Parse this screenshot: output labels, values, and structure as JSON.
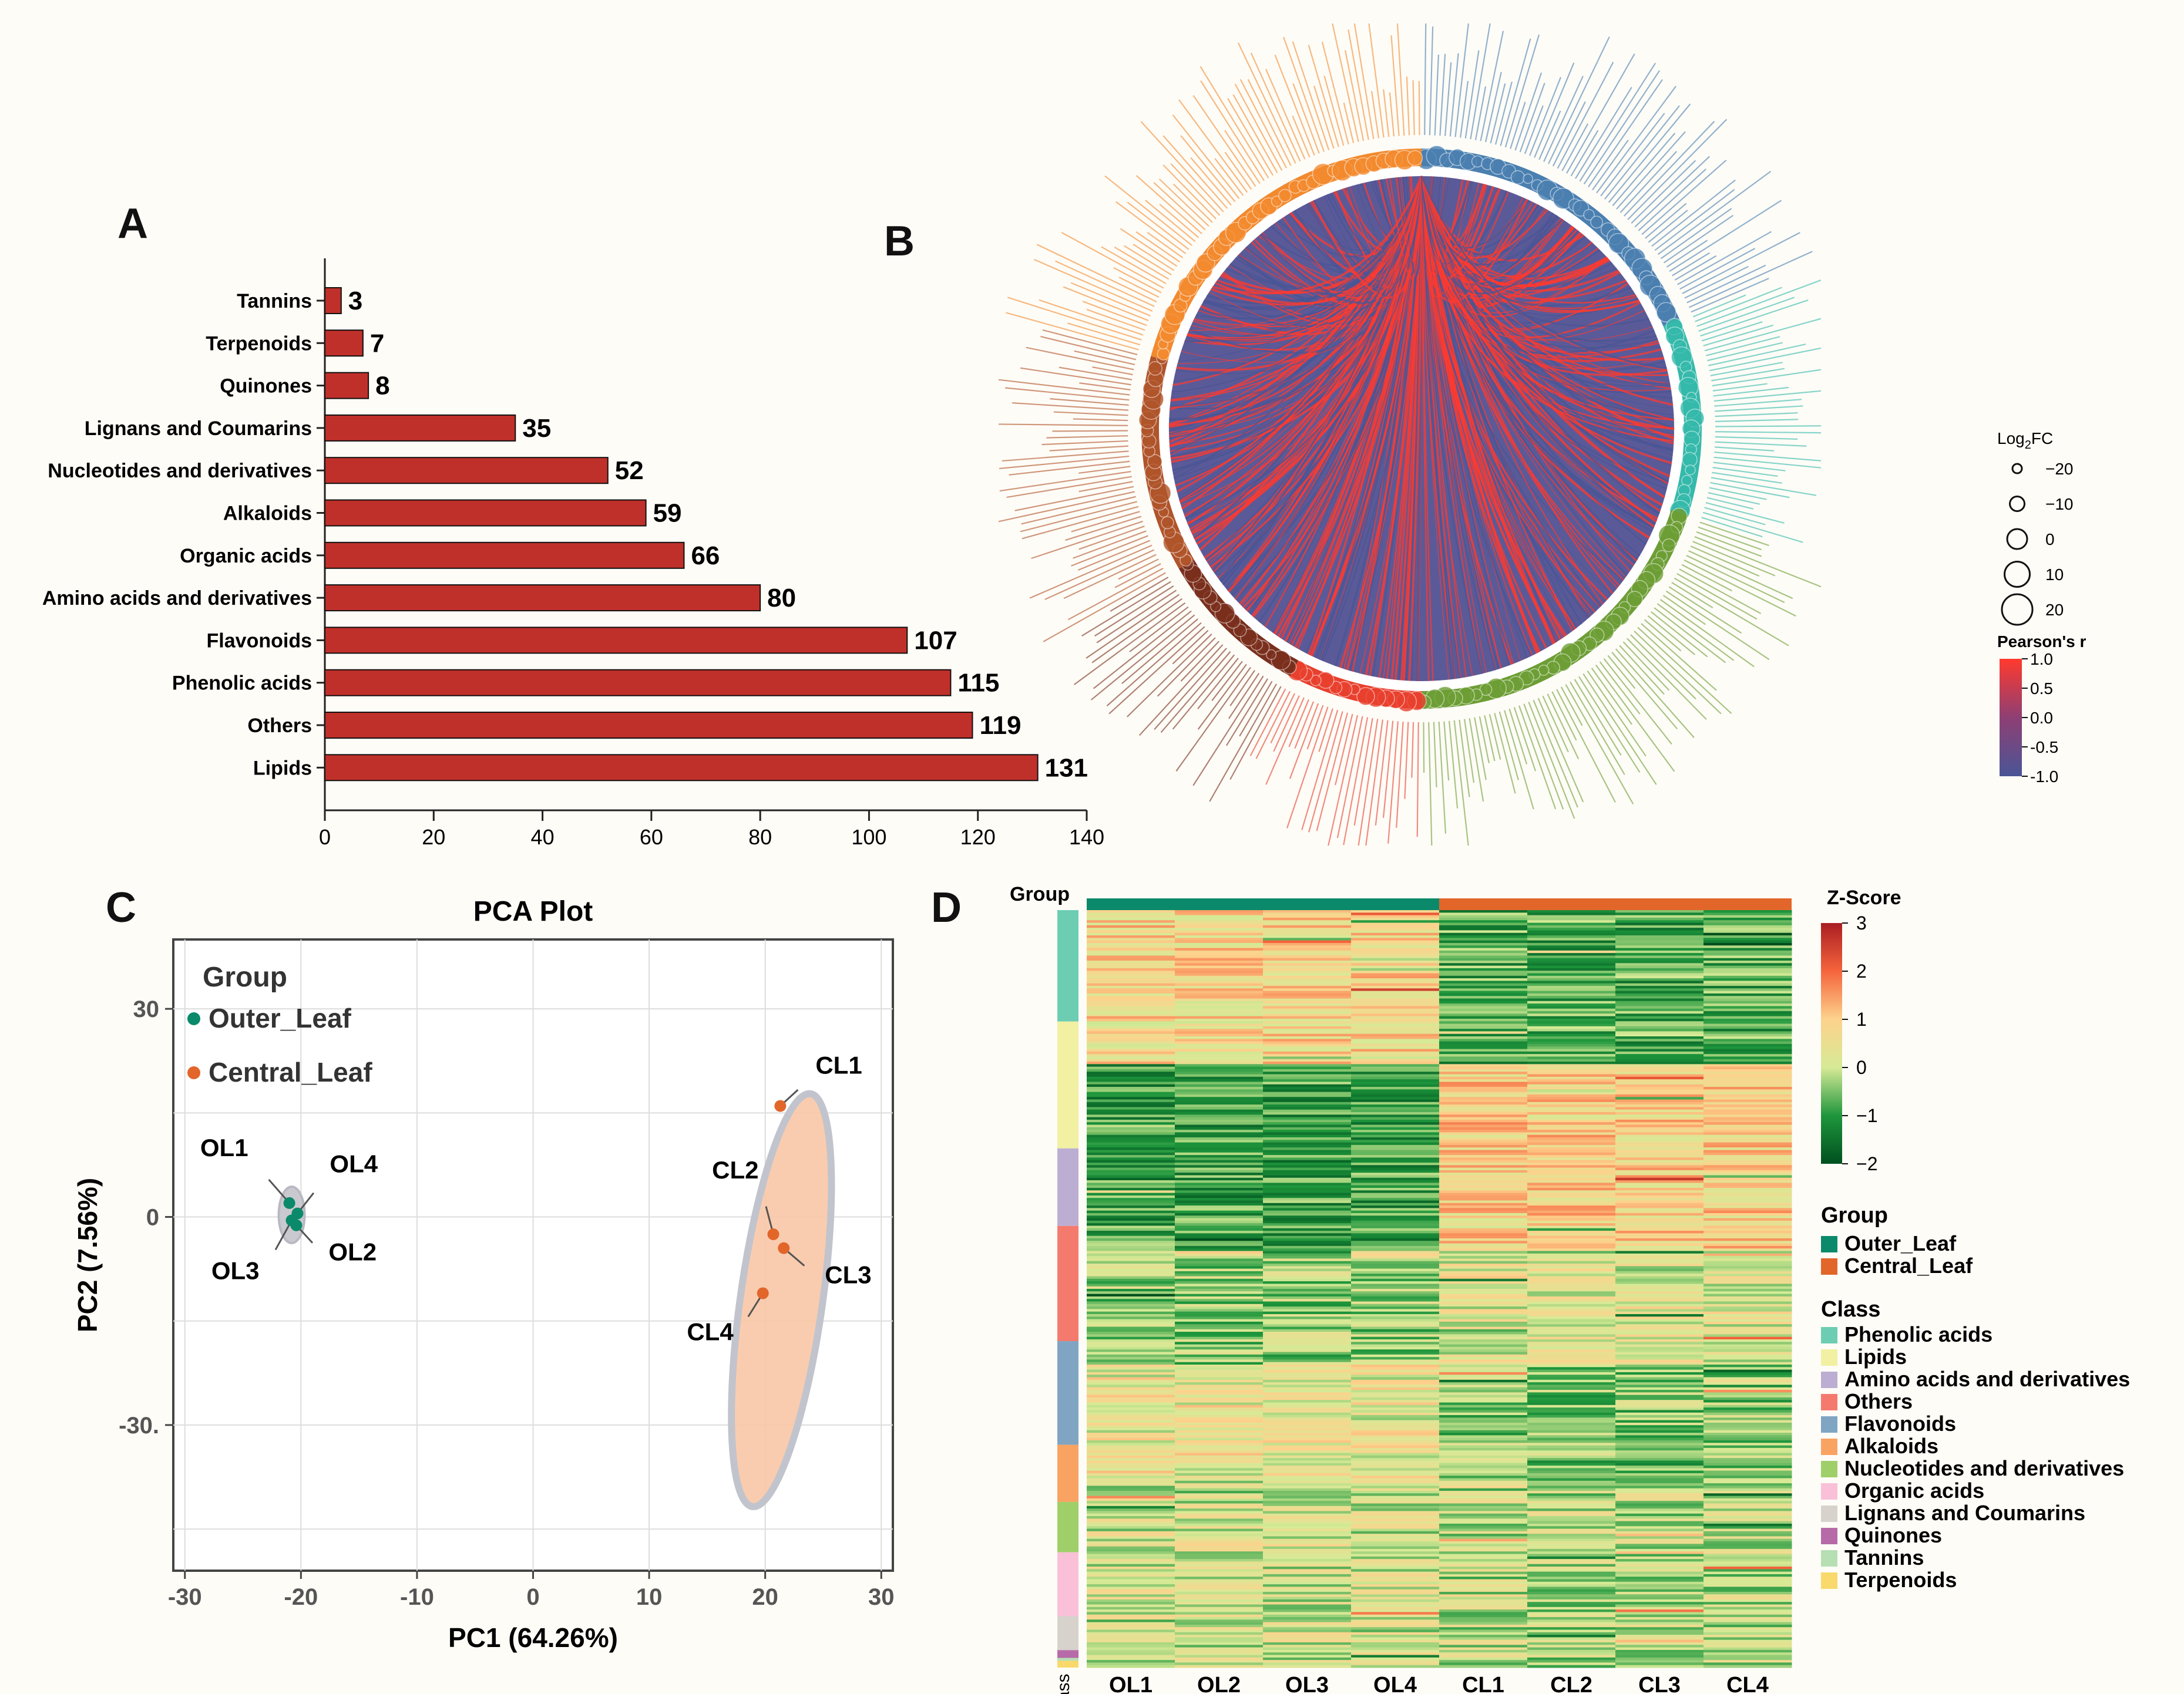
{
  "panels": {
    "a": "A",
    "b": "B",
    "c": "C",
    "d": "D"
  },
  "colors": {
    "bar": "#c0302a",
    "outer": "#0a8a6a",
    "central": "#e2662a",
    "pos": "#ff3a2e",
    "neg": "#4a5596",
    "background": "#fefcf7"
  },
  "chart_data": [
    {
      "id": "A",
      "type": "bar",
      "orientation": "horizontal",
      "categories": [
        "Tannins",
        "Terpenoids",
        "Quinones",
        "Lignans and Coumarins",
        "Nucleotides and derivatives",
        "Alkaloids",
        "Organic acids",
        "Amino acids and derivatives",
        "Flavonoids",
        "Phenolic acids",
        "Others",
        "Lipids"
      ],
      "values": [
        3,
        7,
        8,
        35,
        52,
        59,
        66,
        80,
        107,
        115,
        119,
        131
      ],
      "labels": [
        "3",
        "7",
        "8",
        "35",
        "52",
        "59",
        "66",
        "80",
        "107",
        "115",
        "119",
        "131"
      ],
      "xlim": [
        0,
        140
      ],
      "xticks": [
        0,
        20,
        40,
        60,
        80,
        100,
        120,
        140
      ],
      "xtick_labels": [
        "0",
        "20",
        "40",
        "60",
        "80",
        "100",
        "120",
        "140"
      ]
    },
    {
      "id": "B",
      "type": "chord",
      "classes": [
        "Phenolic acids",
        "Lipids",
        "Amino acids and derivatives",
        "Others",
        "Flavonoids",
        "Alkaloids",
        "Nucleotides and derivatives",
        "Organic acids",
        "Lignans and Coumarins",
        "Quinones",
        "Tannins",
        "Terpenoids"
      ],
      "size_legend": {
        "title": "Log2FC",
        "title_main": "Log",
        "title_sub": "2",
        "title_end": "FC",
        "values": [
          -20,
          -10,
          0,
          10,
          20
        ],
        "labels": [
          "−20",
          "−10",
          "0",
          "10",
          "20"
        ]
      },
      "color_legend": {
        "title": "Pearson's r",
        "range": [
          -1.0,
          1.0
        ],
        "ticks": [
          1.0,
          0.5,
          0.0,
          -0.5,
          -1.0
        ],
        "labels": [
          "1.0",
          "0.5",
          "0.0",
          "-0.5",
          "-1.0"
        ]
      }
    },
    {
      "id": "C",
      "type": "scatter",
      "title": "PCA Plot",
      "xlabel": "PC1 (64.26%)",
      "ylabel": "PC2 (7.56%)",
      "xlim": [
        -30,
        30
      ],
      "ylim": [
        -50,
        40
      ],
      "xticks": [
        -30,
        -20,
        -10,
        0,
        10,
        20,
        30
      ],
      "xtick_labels": [
        "-30",
        "-20",
        "-10",
        "0",
        "10",
        "20",
        "30"
      ],
      "yticks": [
        30,
        0,
        -30
      ],
      "ytick_labels": [
        "30",
        "0",
        "-30."
      ],
      "legend_title": "Group",
      "series": [
        {
          "name": "Outer_Leaf",
          "color": "#0a8a6a",
          "points": [
            {
              "label": "OL1",
              "x": -21.0,
              "y": 2.0
            },
            {
              "label": "OL4",
              "x": -20.3,
              "y": 0.5
            },
            {
              "label": "OL2",
              "x": -20.4,
              "y": -1.2
            },
            {
              "label": "OL3",
              "x": -20.8,
              "y": -0.5
            }
          ]
        },
        {
          "name": "Central_Leaf",
          "color": "#e2662a",
          "points": [
            {
              "label": "CL1",
              "x": 21.3,
              "y": 16.0
            },
            {
              "label": "CL2",
              "x": 20.7,
              "y": -2.5
            },
            {
              "label": "CL3",
              "x": 21.6,
              "y": -4.5
            },
            {
              "label": "CL4",
              "x": 19.8,
              "y": -11.0
            }
          ]
        }
      ]
    },
    {
      "id": "D",
      "type": "heatmap",
      "columns": [
        "OL1",
        "OL2",
        "OL3",
        "OL4",
        "CL1",
        "CL2",
        "CL3",
        "CL4"
      ],
      "group_label": "Group",
      "class_label": "Class",
      "colorbar": {
        "title": "Z-Score",
        "range": [
          -2,
          3
        ],
        "ticks": [
          3,
          2,
          1,
          0,
          -1,
          -2
        ],
        "labels": [
          "3",
          "2",
          "1",
          "0",
          "−1",
          "−2"
        ]
      },
      "groups": [
        {
          "name": "Outer_Leaf",
          "color": "#0a8a6a"
        },
        {
          "name": "Central_Leaf",
          "color": "#e2662a"
        }
      ],
      "classes": [
        {
          "name": "Phenolic acids",
          "color": "#6ccdb3",
          "count": 115
        },
        {
          "name": "Lipids",
          "color": "#f2f0a2",
          "count": 131
        },
        {
          "name": "Amino acids and derivatives",
          "color": "#bcaed2",
          "count": 80
        },
        {
          "name": "Others",
          "color": "#f57a6e",
          "count": 119
        },
        {
          "name": "Flavonoids",
          "color": "#7fa5c3",
          "count": 107
        },
        {
          "name": "Alkaloids",
          "color": "#f9a362",
          "count": 59
        },
        {
          "name": "Nucleotides and derivatives",
          "color": "#9fcf69",
          "count": 52
        },
        {
          "name": "Organic acids",
          "color": "#f9c0d8",
          "count": 66
        },
        {
          "name": "Lignans and Coumarins",
          "color": "#d7d2cc",
          "count": 35
        },
        {
          "name": "Quinones",
          "color": "#b76aa8",
          "count": 8
        },
        {
          "name": "Tannins",
          "color": "#b6dfb3",
          "count": 3
        },
        {
          "name": "Terpenoids",
          "color": "#f9d96b",
          "count": 7
        }
      ]
    }
  ]
}
